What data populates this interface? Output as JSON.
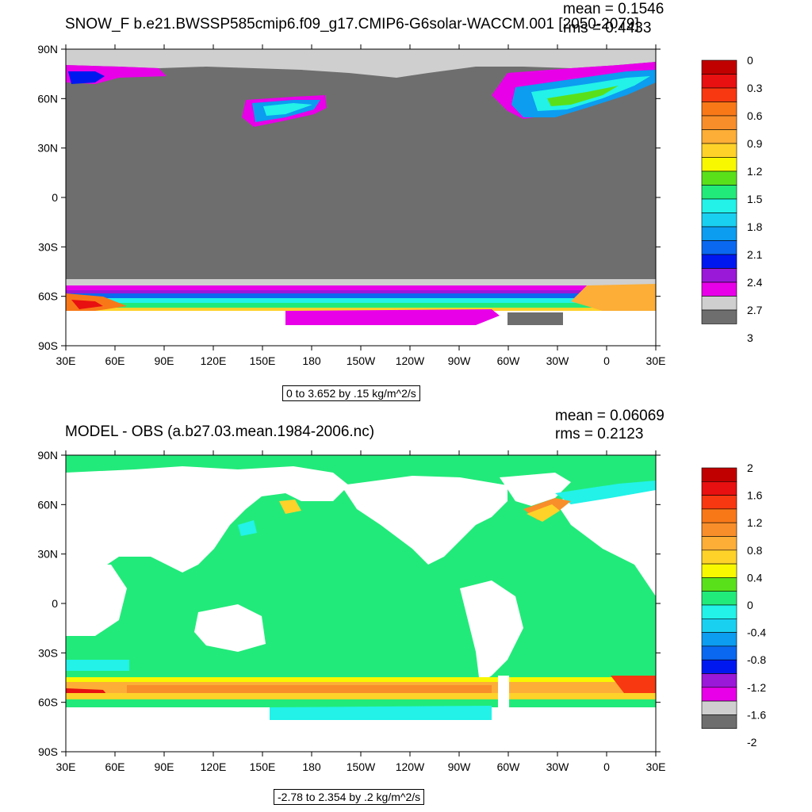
{
  "top": {
    "title": "SNOW_F b.e21.BWSSP585cmip6.f09_g17.CMIP6-G6solar-WACCM.001 [2050-2079]",
    "mean_label": "mean = 0.1546",
    "rms_label": "rms = 0.4433",
    "range_label": "0 to 3.652 by .15 kg/m^2/s",
    "colorbar": {
      "colors": [
        "#6e6e6e",
        "#cfcfcf",
        "#e800e8",
        "#9a18d8",
        "#0018f0",
        "#0a68f0",
        "#0c9cf0",
        "#1ad0f0",
        "#22f2e8",
        "#22ea7a",
        "#5ae01a",
        "#f8f800",
        "#ffd22a",
        "#fcae36",
        "#f88e2a",
        "#f87818",
        "#f83810",
        "#e81010",
        "#c00000"
      ],
      "labels": [
        "0",
        "0.3",
        "0.6",
        "0.9",
        "1.2",
        "1.5",
        "1.8",
        "2.1",
        "2.4",
        "2.7",
        "3"
      ]
    }
  },
  "bottom": {
    "title": "MODEL - OBS (a.b27.03.mean.1984-2006.nc)",
    "mean_label": "mean = 0.06069",
    "rms_label": "rms = 0.2123",
    "range_label": "-2.78 to 2.354 by .2 kg/m^2/s",
    "colorbar": {
      "colors": [
        "#6e6e6e",
        "#cfcfcf",
        "#e800e8",
        "#9a18d8",
        "#0018f0",
        "#0a68f0",
        "#0c9cf0",
        "#1ad0f0",
        "#22f2e8",
        "#22ea7a",
        "#5ae01a",
        "#f8f800",
        "#ffd22a",
        "#fcae36",
        "#f88e2a",
        "#f87818",
        "#f83810",
        "#e81010",
        "#c00000"
      ],
      "labels": [
        "2",
        "1.6",
        "1.2",
        "0.8",
        "0.4",
        "0",
        "-0.4",
        "-0.8",
        "-1.2",
        "-1.6",
        "-2"
      ]
    }
  },
  "axes": {
    "lat_labels": [
      "90N",
      "60N",
      "30N",
      "0",
      "30S",
      "60S",
      "90S"
    ],
    "lon_labels": [
      "30E",
      "60E",
      "90E",
      "120E",
      "150E",
      "180",
      "150W",
      "120W",
      "90W",
      "60W",
      "30W",
      "0",
      "30E"
    ]
  },
  "colors": {
    "land_top": "#6e6e6e",
    "ocean_bottom": "#22ea7a",
    "continent": "#ffffff"
  }
}
